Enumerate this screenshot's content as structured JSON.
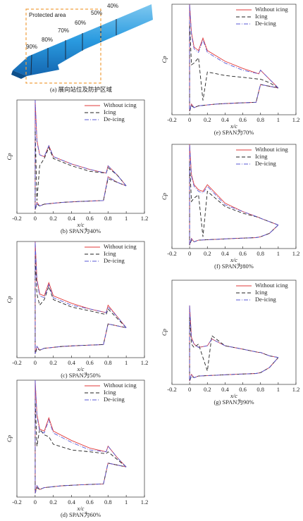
{
  "wing_panel": {
    "area_label": "Protected area",
    "station_labels": [
      "90%",
      "80%",
      "70%",
      "60%",
      "50%",
      "40%"
    ],
    "caption": "(a) 展向站位及防护区域"
  },
  "chart_data": [
    {
      "type": "line",
      "caption": "(b) SPAN为40%",
      "xlabel": "x/c",
      "ylabel": "Cp",
      "xlim": [
        -0.2,
        1.2
      ],
      "xticks": [
        -0.2,
        0,
        0.2,
        0.4,
        0.6,
        0.8,
        1,
        1.2
      ],
      "ylim": [
        1.2,
        -5
      ],
      "x": [
        1.0,
        0.9,
        0.8,
        0.78,
        0.6,
        0.4,
        0.2,
        0.15,
        0.1,
        0.05,
        0.02,
        0.0,
        0.0,
        0.02,
        0.05,
        0.1,
        0.3,
        0.5,
        0.75,
        0.8,
        0.9,
        1.0
      ],
      "series": [
        {
          "name": "Without icing",
          "color": "#e23a3a",
          "values": [
            -0.3,
            -0.9,
            -1.4,
            -1.0,
            -1.2,
            -1.5,
            -1.9,
            -2.5,
            -1.9,
            -2.0,
            -2.8,
            -5.0,
            1.0,
            0.6,
            0.8,
            0.7,
            0.6,
            0.55,
            0.5,
            -0.8,
            -0.5,
            -0.3
          ]
        },
        {
          "name": "Icing",
          "color": "#222222",
          "values": [
            -0.3,
            -0.9,
            -1.3,
            -1.0,
            -1.1,
            -1.4,
            -1.8,
            -2.4,
            -1.8,
            -1.4,
            0.5,
            -3.5,
            1.0,
            0.7,
            0.8,
            0.7,
            0.6,
            0.55,
            0.5,
            -0.7,
            -0.5,
            -0.3
          ]
        },
        {
          "name": "De-icing",
          "color": "#5a5ad6",
          "values": [
            -0.3,
            -0.9,
            -1.4,
            -1.0,
            -1.2,
            -1.5,
            -1.9,
            -2.5,
            -1.9,
            -2.0,
            -2.7,
            -5.0,
            1.0,
            0.6,
            0.8,
            0.7,
            0.6,
            0.55,
            0.5,
            -0.8,
            -0.5,
            -0.3
          ]
        }
      ]
    },
    {
      "type": "line",
      "caption": "(c) SPAN为50%",
      "xlabel": "x/c",
      "ylabel": "Cp",
      "xlim": [
        -0.2,
        1.2
      ],
      "xticks": [
        -0.2,
        0,
        0.2,
        0.4,
        0.6,
        0.8,
        1,
        1.2
      ],
      "ylim": [
        1.2,
        -5
      ],
      "x": [
        1.0,
        0.9,
        0.8,
        0.78,
        0.6,
        0.4,
        0.2,
        0.15,
        0.1,
        0.05,
        0.02,
        0.0,
        0.0,
        0.02,
        0.05,
        0.1,
        0.3,
        0.5,
        0.75,
        0.8,
        0.9,
        1.0
      ],
      "series": [
        {
          "name": "Without icing",
          "color": "#e23a3a",
          "values": [
            -0.4,
            -1.0,
            -1.6,
            -1.2,
            -1.4,
            -1.7,
            -2.1,
            -2.8,
            -2.1,
            -2.2,
            -3.0,
            -5.0,
            1.0,
            0.6,
            0.8,
            0.7,
            0.6,
            0.55,
            0.5,
            -0.6,
            -0.5,
            -0.4
          ]
        },
        {
          "name": "Icing",
          "color": "#222222",
          "values": [
            -0.4,
            -0.9,
            -1.4,
            -1.1,
            -1.3,
            -1.5,
            -1.9,
            -2.6,
            -1.9,
            -1.6,
            -2.2,
            -4.2,
            1.0,
            0.7,
            0.8,
            0.7,
            0.6,
            0.55,
            0.5,
            -0.6,
            -0.5,
            -0.4
          ]
        },
        {
          "name": "De-icing",
          "color": "#5a5ad6",
          "values": [
            -0.4,
            -1.0,
            -1.5,
            -1.2,
            -1.4,
            -1.6,
            -2.0,
            -2.7,
            -2.0,
            -2.1,
            -2.9,
            -5.0,
            1.0,
            0.6,
            0.8,
            0.7,
            0.6,
            0.55,
            0.5,
            -0.6,
            -0.5,
            -0.4
          ]
        }
      ]
    },
    {
      "type": "line",
      "caption": "(d) SPAN为60%",
      "xlabel": "x/c",
      "ylabel": "Cp",
      "xlim": [
        -0.2,
        1.2
      ],
      "xticks": [
        -0.2,
        0,
        0.2,
        0.4,
        0.6,
        0.8,
        1,
        1.2
      ],
      "ylim": [
        1.2,
        -5
      ],
      "x": [
        1.0,
        0.9,
        0.8,
        0.78,
        0.6,
        0.4,
        0.2,
        0.15,
        0.1,
        0.05,
        0.02,
        0.0,
        0.0,
        0.02,
        0.05,
        0.1,
        0.3,
        0.5,
        0.75,
        0.8,
        0.9,
        1.0
      ],
      "series": [
        {
          "name": "Without icing",
          "color": "#e23a3a",
          "values": [
            -0.4,
            -0.9,
            -1.5,
            -1.2,
            -1.4,
            -1.8,
            -2.3,
            -3.0,
            -2.3,
            -2.4,
            -3.2,
            -5.0,
            1.0,
            0.6,
            0.8,
            0.7,
            0.6,
            0.55,
            0.5,
            -0.6,
            -0.5,
            -0.4
          ]
        },
        {
          "name": "Icing",
          "color": "#222222",
          "values": [
            -0.4,
            -0.8,
            -1.2,
            -1.1,
            -1.2,
            -1.3,
            -1.6,
            -2.0,
            -2.1,
            -2.4,
            -1.5,
            -4.0,
            1.0,
            0.7,
            0.8,
            0.7,
            0.6,
            0.55,
            0.5,
            -0.6,
            -0.5,
            -0.4
          ]
        },
        {
          "name": "De-icing",
          "color": "#5a5ad6",
          "values": [
            -0.4,
            -0.9,
            -1.5,
            -1.2,
            -1.3,
            -1.7,
            -2.2,
            -2.9,
            -2.2,
            -2.3,
            -3.1,
            -5.0,
            1.0,
            0.6,
            0.8,
            0.7,
            0.6,
            0.55,
            0.5,
            -0.6,
            -0.5,
            -0.4
          ]
        }
      ]
    },
    {
      "type": "line",
      "caption": "(e) SPAN为70%",
      "xlabel": "x/c",
      "ylabel": "Cp",
      "xlim": [
        -0.2,
        1.2
      ],
      "xticks": [
        -0.2,
        0,
        0.2,
        0.4,
        0.6,
        0.8,
        1,
        1.2
      ],
      "ylim": [
        1.2,
        -5
      ],
      "x": [
        1.0,
        0.9,
        0.8,
        0.78,
        0.6,
        0.4,
        0.2,
        0.15,
        0.1,
        0.05,
        0.02,
        0.0,
        0.0,
        0.02,
        0.05,
        0.1,
        0.3,
        0.5,
        0.75,
        0.8,
        0.9,
        1.0
      ],
      "series": [
        {
          "name": "Without icing",
          "color": "#e23a3a",
          "values": [
            -0.3,
            -0.8,
            -1.3,
            -1.1,
            -1.4,
            -1.8,
            -2.4,
            -3.1,
            -2.4,
            -2.6,
            -3.4,
            -5.0,
            1.0,
            0.6,
            0.8,
            0.7,
            0.6,
            0.55,
            0.5,
            -0.5,
            -0.4,
            -0.3
          ]
        },
        {
          "name": "Icing",
          "color": "#222222",
          "values": [
            -0.3,
            -0.6,
            -0.8,
            -0.8,
            -0.9,
            -1.0,
            -1.2,
            0.4,
            -2.0,
            -1.7,
            -1.6,
            -4.0,
            1.0,
            0.7,
            0.8,
            0.7,
            0.6,
            0.55,
            0.5,
            -0.5,
            -0.4,
            -0.3
          ]
        },
        {
          "name": "De-icing",
          "color": "#5a5ad6",
          "values": [
            -0.3,
            -0.8,
            -1.3,
            -1.1,
            -1.3,
            -1.7,
            -2.3,
            -3.0,
            -2.3,
            -2.5,
            -3.3,
            -5.0,
            1.0,
            0.6,
            0.8,
            0.7,
            0.6,
            0.55,
            0.5,
            -0.5,
            -0.4,
            -0.3
          ]
        }
      ]
    },
    {
      "type": "line",
      "caption": "(f) SPAN为80%",
      "xlabel": "x/c",
      "ylabel": "Cp",
      "xlim": [
        -0.2,
        1.2
      ],
      "xticks": [
        -0.2,
        0,
        0.2,
        0.4,
        0.6,
        0.8,
        1,
        1.2
      ],
      "ylim": [
        1.2,
        -5
      ],
      "x": [
        1.0,
        0.9,
        0.8,
        0.78,
        0.6,
        0.4,
        0.2,
        0.15,
        0.1,
        0.05,
        0.02,
        0.0,
        0.0,
        0.02,
        0.05,
        0.1,
        0.3,
        0.5,
        0.75,
        0.8,
        0.9,
        1.0
      ],
      "series": [
        {
          "name": "Without icing",
          "color": "#e23a3a",
          "values": [
            -0.2,
            -0.4,
            -0.6,
            -0.65,
            -1.0,
            -1.5,
            -2.6,
            -2.2,
            -2.3,
            -2.6,
            -3.2,
            -5.0,
            1.0,
            0.6,
            0.8,
            0.7,
            0.65,
            0.6,
            0.55,
            0.5,
            0.3,
            -0.2
          ]
        },
        {
          "name": "Icing",
          "color": "#222222",
          "values": [
            -0.2,
            -0.4,
            -0.6,
            -0.65,
            -0.9,
            -1.3,
            -2.2,
            0.5,
            -2.0,
            -1.8,
            -1.6,
            -4.0,
            1.0,
            0.7,
            0.8,
            0.7,
            0.65,
            0.6,
            0.55,
            0.5,
            0.3,
            -0.2
          ]
        },
        {
          "name": "De-icing",
          "color": "#5a5ad6",
          "values": [
            -0.2,
            -0.4,
            -0.6,
            -0.65,
            -1.0,
            -1.4,
            -2.5,
            -2.1,
            -2.2,
            -2.5,
            -3.1,
            -5.0,
            1.0,
            0.6,
            0.8,
            0.7,
            0.65,
            0.6,
            0.55,
            0.5,
            0.3,
            -0.2
          ]
        }
      ]
    },
    {
      "type": "line",
      "caption": "(g) SPAN为90%",
      "xlabel": "x/c",
      "ylabel": "Cp",
      "xlim": [
        -0.2,
        1.2
      ],
      "xticks": [
        -0.2,
        0,
        0.2,
        0.4,
        0.6,
        0.8,
        1,
        1.2
      ],
      "ylim": [
        1.2,
        -5
      ],
      "x": [
        1.0,
        0.9,
        0.8,
        0.78,
        0.6,
        0.4,
        0.25,
        0.2,
        0.1,
        0.05,
        0.02,
        0.0,
        0.0,
        0.02,
        0.05,
        0.1,
        0.3,
        0.5,
        0.75,
        0.8,
        0.9,
        1.0
      ],
      "series": [
        {
          "name": "Without icing",
          "color": "#e23a3a",
          "values": [
            -0.4,
            -0.5,
            -0.7,
            -0.7,
            -0.9,
            -1.1,
            -1.5,
            -1.1,
            -1.0,
            -1.2,
            -1.6,
            -3.5,
            1.0,
            0.6,
            0.8,
            0.7,
            0.65,
            0.6,
            0.55,
            0.5,
            0.2,
            -0.4
          ]
        },
        {
          "name": "Icing",
          "color": "#222222",
          "values": [
            -0.4,
            -0.5,
            -0.7,
            -0.7,
            -0.9,
            -1.1,
            -1.7,
            0.4,
            -1.2,
            -1.0,
            -1.2,
            -2.8,
            1.0,
            0.7,
            0.8,
            0.7,
            0.65,
            0.6,
            0.55,
            0.5,
            0.2,
            -0.4
          ]
        },
        {
          "name": "De-icing",
          "color": "#5a5ad6",
          "values": [
            -0.4,
            -0.5,
            -0.7,
            -0.7,
            -0.9,
            -1.1,
            -1.5,
            -1.1,
            -1.0,
            -1.2,
            -1.5,
            -3.5,
            1.0,
            0.6,
            0.8,
            0.7,
            0.65,
            0.6,
            0.55,
            0.5,
            0.2,
            -0.4
          ]
        }
      ]
    }
  ]
}
